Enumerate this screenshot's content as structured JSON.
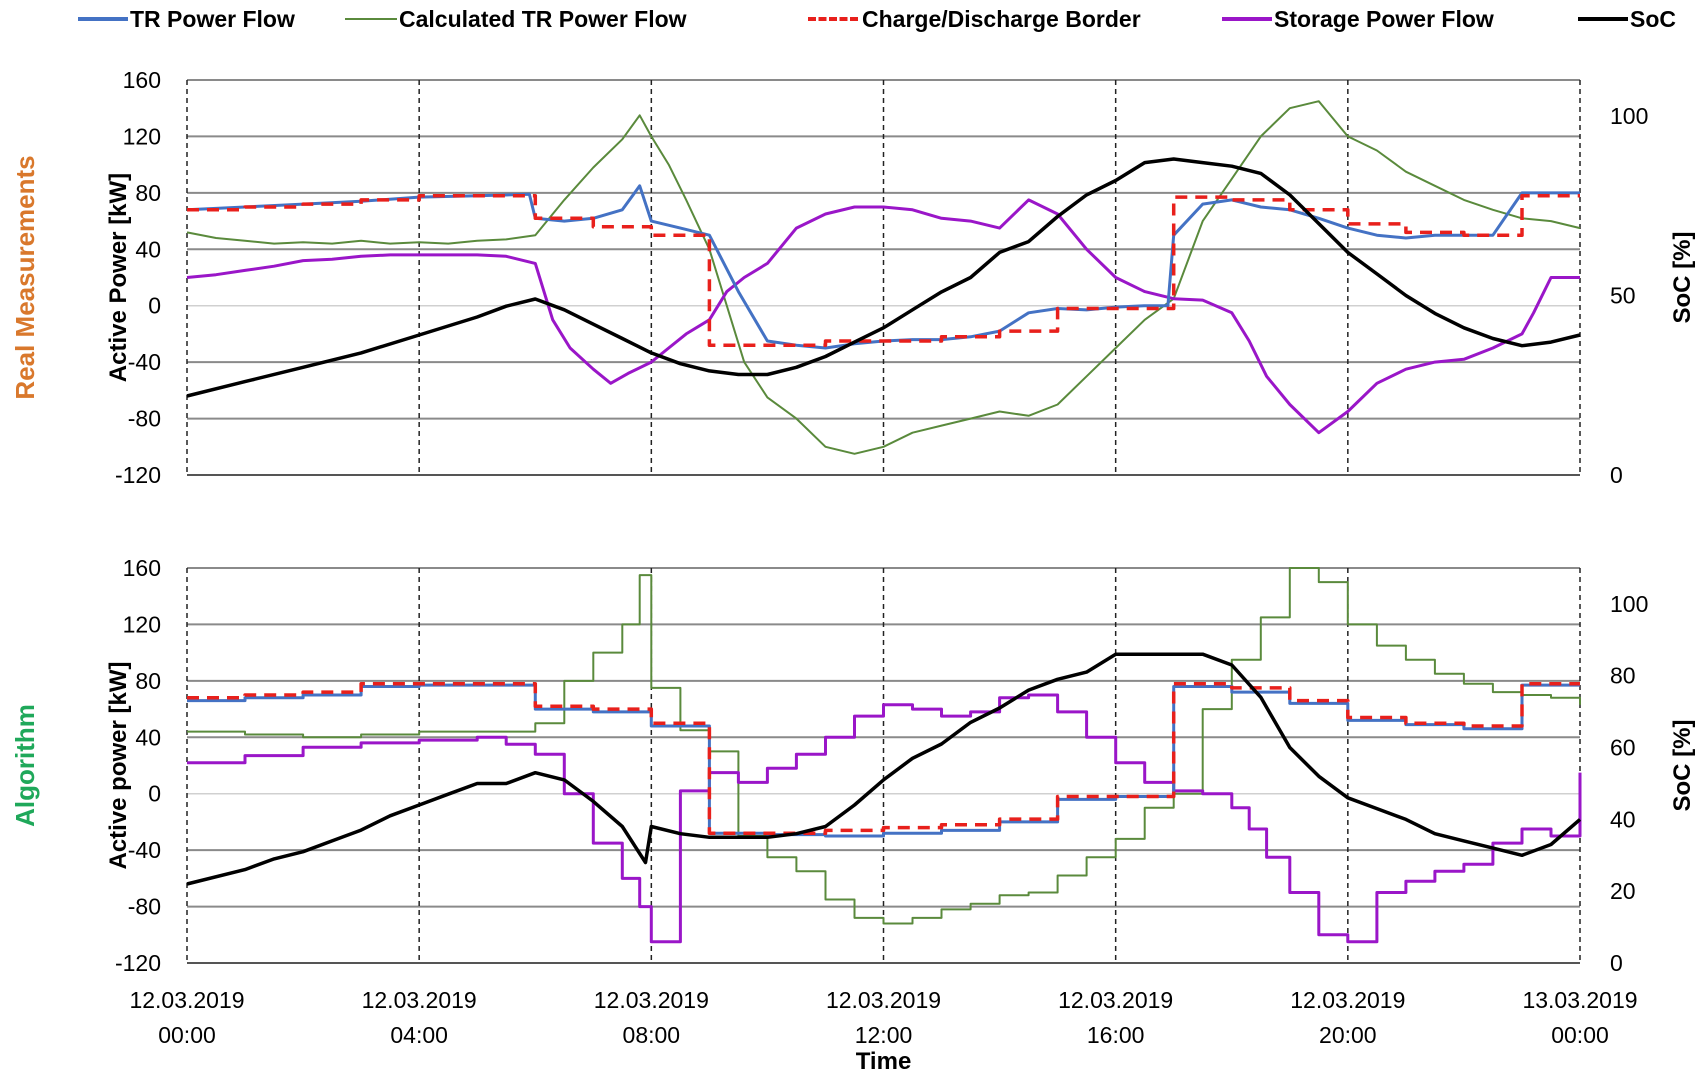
{
  "legend": {
    "tr_power_flow": "TR Power Flow",
    "calculated_tr_power_flow": "Calculated TR Power Flow",
    "charge_discharge_border": "Charge/Discharge Border",
    "storage_power_flow": "Storage Power Flow",
    "soc": "SoC"
  },
  "colors": {
    "tr": "#4472c4",
    "calc": "#5a8a3c",
    "border": "#e8201c",
    "storage": "#9a16c8",
    "soc": "#000000",
    "real_label": "#d9782c",
    "algo_label": "#1fa85a"
  },
  "x_ticks": [
    {
      "date": "12.03.2019",
      "time": "00:00"
    },
    {
      "date": "12.03.2019",
      "time": "04:00"
    },
    {
      "date": "12.03.2019",
      "time": "08:00"
    },
    {
      "date": "12.03.2019",
      "time": "12:00"
    },
    {
      "date": "12.03.2019",
      "time": "16:00"
    },
    {
      "date": "12.03.2019",
      "time": "20:00"
    },
    {
      "date": "13.03.2019",
      "time": "00:00"
    }
  ],
  "x_label": "Time",
  "chart_data": [
    {
      "type": "line",
      "panel_label": "Real Measurements",
      "ylabel": "Active Power [kW]",
      "y2label": "SoC [%]",
      "ylim": [
        -120,
        160
      ],
      "y_ticks": [
        "160",
        "120",
        "80",
        "40",
        "0",
        "-40",
        "-80",
        "-120"
      ],
      "y2lim": [
        0,
        110
      ],
      "y2_ticks": [
        "100",
        "50",
        "0"
      ],
      "x_unit": "hours since 12.03.2019 00:00",
      "xlim": [
        0,
        24
      ],
      "series": [
        {
          "name": "TR Power Flow",
          "axis": "left",
          "step": false,
          "x": [
            0,
            1,
            2,
            3,
            4,
            5,
            5.9,
            6,
            6.5,
            7,
            7.5,
            7.8,
            8,
            8.5,
            9,
            9.5,
            10,
            10.5,
            11,
            11.5,
            12,
            12.5,
            13,
            13.5,
            14,
            14.5,
            15,
            15.5,
            16,
            16.5,
            16.9,
            17,
            17.5,
            18,
            18.5,
            19,
            19.5,
            20,
            20.5,
            21,
            21.5,
            22,
            22.5,
            23,
            23.5,
            24
          ],
          "y": [
            68,
            70,
            72,
            74,
            77,
            78,
            79,
            62,
            60,
            62,
            68,
            85,
            60,
            55,
            50,
            10,
            -25,
            -28,
            -30,
            -27,
            -25,
            -24,
            -24,
            -22,
            -18,
            -5,
            -2,
            -3,
            -1,
            0,
            0,
            50,
            72,
            75,
            70,
            68,
            62,
            55,
            50,
            48,
            50,
            50,
            50,
            80,
            80,
            80
          ]
        },
        {
          "name": "Calculated TR Power Flow",
          "axis": "left",
          "step": false,
          "x": [
            0,
            0.5,
            1,
            1.5,
            2,
            2.5,
            3,
            3.5,
            4,
            4.5,
            5,
            5.5,
            6,
            6.5,
            7,
            7.5,
            7.8,
            8,
            8.3,
            8.6,
            9,
            9.3,
            9.6,
            10,
            10.5,
            11,
            11.5,
            12,
            12.5,
            13,
            13.5,
            14,
            14.5,
            15,
            15.5,
            16,
            16.5,
            17,
            17.5,
            18,
            18.5,
            19,
            19.5,
            20,
            20.5,
            21,
            21.5,
            22,
            22.5,
            23,
            23.5,
            24
          ],
          "y": [
            52,
            48,
            46,
            44,
            45,
            44,
            46,
            44,
            45,
            44,
            46,
            47,
            50,
            75,
            98,
            118,
            135,
            120,
            100,
            75,
            40,
            0,
            -40,
            -65,
            -80,
            -100,
            -105,
            -100,
            -90,
            -85,
            -80,
            -75,
            -78,
            -70,
            -50,
            -30,
            -10,
            5,
            60,
            90,
            120,
            140,
            145,
            120,
            110,
            95,
            85,
            75,
            68,
            62,
            60,
            55
          ]
        },
        {
          "name": "Charge/Discharge Border",
          "axis": "left",
          "step": true,
          "x": [
            0,
            1,
            2,
            3,
            4,
            5,
            6,
            7,
            8,
            9,
            10,
            11,
            12,
            13,
            14,
            15,
            16,
            17,
            18,
            19,
            20,
            21,
            22,
            23,
            24
          ],
          "y": [
            68,
            70,
            72,
            75,
            78,
            78,
            62,
            56,
            50,
            -28,
            -28,
            -25,
            -25,
            -22,
            -18,
            -2,
            -2,
            77,
            75,
            68,
            58,
            52,
            50,
            78,
            78
          ]
        },
        {
          "name": "Storage Power Flow",
          "axis": "left",
          "step": false,
          "x": [
            0,
            0.5,
            1,
            1.5,
            2,
            2.5,
            3,
            3.5,
            4,
            4.5,
            5,
            5.5,
            6,
            6.3,
            6.6,
            7,
            7.3,
            7.6,
            8,
            8.3,
            8.6,
            9,
            9.3,
            9.6,
            10,
            10.5,
            11,
            11.5,
            12,
            12.5,
            13,
            13.5,
            14,
            14.5,
            15,
            15.5,
            16,
            16.5,
            17,
            17.5,
            18,
            18.3,
            18.6,
            19,
            19.5,
            20,
            20.5,
            21,
            21.5,
            22,
            22.5,
            23,
            23.2,
            23.5,
            24
          ],
          "y": [
            20,
            22,
            25,
            28,
            32,
            33,
            35,
            36,
            36,
            36,
            36,
            35,
            30,
            -10,
            -30,
            -45,
            -55,
            -48,
            -40,
            -30,
            -20,
            -10,
            10,
            20,
            30,
            55,
            65,
            70,
            70,
            68,
            62,
            60,
            55,
            75,
            65,
            40,
            20,
            10,
            5,
            4,
            -5,
            -25,
            -50,
            -70,
            -90,
            -75,
            -55,
            -45,
            -40,
            -38,
            -30,
            -20,
            -5,
            20,
            20
          ]
        },
        {
          "name": "SoC",
          "axis": "right",
          "step": false,
          "x": [
            0,
            1,
            2,
            3,
            4,
            5,
            5.5,
            6,
            6.5,
            7,
            7.5,
            8,
            8.5,
            9,
            9.5,
            10,
            10.5,
            11,
            11.5,
            12,
            12.5,
            13,
            13.5,
            14,
            14.5,
            15,
            15.5,
            16,
            16.5,
            17,
            17.5,
            18,
            18.5,
            19,
            19.5,
            20,
            20.5,
            21,
            21.5,
            22,
            22.5,
            23,
            23.5,
            24
          ],
          "y": [
            22,
            26,
            30,
            34,
            39,
            44,
            47,
            49,
            46,
            42,
            38,
            34,
            31,
            29,
            28,
            28,
            30,
            33,
            37,
            41,
            46,
            51,
            55,
            62,
            65,
            72,
            78,
            82,
            87,
            88,
            87,
            86,
            84,
            78,
            70,
            62,
            56,
            50,
            45,
            41,
            38,
            36,
            37,
            39
          ]
        }
      ]
    },
    {
      "type": "line",
      "panel_label": "Algorithm",
      "ylabel": "Active power [kW]",
      "y2label": "SoC [%]",
      "ylim": [
        -120,
        160
      ],
      "y_ticks": [
        "160",
        "120",
        "80",
        "40",
        "0",
        "-40",
        "-80",
        "-120"
      ],
      "y2lim": [
        0,
        110
      ],
      "y2_ticks": [
        "100",
        "80",
        "60",
        "40",
        "20",
        "0"
      ],
      "x_unit": "hours since 12.03.2019 00:00",
      "xlim": [
        0,
        24
      ],
      "series": [
        {
          "name": "TR Power Flow",
          "axis": "left",
          "step": true,
          "x": [
            0,
            1,
            2,
            3,
            4,
            5,
            6,
            7,
            8,
            9,
            10,
            11,
            12,
            13,
            14,
            15,
            16,
            17,
            18,
            19,
            20,
            21,
            22,
            23,
            24
          ],
          "y": [
            66,
            68,
            70,
            76,
            77,
            77,
            60,
            58,
            48,
            -28,
            -29,
            -30,
            -28,
            -26,
            -20,
            -4,
            -2,
            76,
            72,
            64,
            52,
            49,
            46,
            77,
            77
          ]
        },
        {
          "name": "Calculated TR Power Flow",
          "axis": "left",
          "step": true,
          "x": [
            0,
            1,
            2,
            3,
            4,
            5,
            6,
            6.5,
            7,
            7.5,
            7.8,
            8,
            8.5,
            9,
            9.5,
            10,
            10.5,
            11,
            11.5,
            12,
            12.5,
            13,
            13.5,
            14,
            14.5,
            15,
            15.5,
            16,
            16.5,
            17,
            17.5,
            18,
            18.5,
            19,
            19.5,
            20,
            20.5,
            21,
            21.5,
            22,
            22.5,
            23,
            23.5,
            24
          ],
          "y": [
            44,
            42,
            40,
            42,
            44,
            44,
            50,
            80,
            100,
            120,
            155,
            75,
            45,
            30,
            -30,
            -45,
            -55,
            -75,
            -88,
            -92,
            -88,
            -82,
            -78,
            -72,
            -70,
            -58,
            -45,
            -32,
            -10,
            0,
            60,
            95,
            125,
            160,
            150,
            120,
            105,
            95,
            85,
            78,
            72,
            70,
            68,
            63
          ]
        },
        {
          "name": "Charge/Discharge Border",
          "axis": "left",
          "step": true,
          "x": [
            0,
            1,
            2,
            3,
            4,
            5,
            6,
            7,
            8,
            9,
            10,
            11,
            12,
            13,
            14,
            15,
            16,
            17,
            18,
            19,
            20,
            21,
            22,
            23,
            24
          ],
          "y": [
            68,
            70,
            72,
            78,
            78,
            78,
            62,
            60,
            50,
            -28,
            -28,
            -26,
            -24,
            -22,
            -18,
            -2,
            -2,
            78,
            75,
            66,
            54,
            50,
            48,
            78,
            78
          ]
        },
        {
          "name": "Storage Power Flow",
          "axis": "left",
          "step": true,
          "x": [
            0,
            1,
            2,
            3,
            4,
            5,
            5.5,
            6,
            6.5,
            7,
            7.5,
            7.8,
            8,
            8.5,
            9,
            9.5,
            10,
            10.5,
            11,
            11.5,
            12,
            12.5,
            13,
            13.5,
            14,
            14.5,
            15,
            15.5,
            16,
            16.5,
            17,
            17.5,
            18,
            18.3,
            18.6,
            19,
            19.5,
            20,
            20.5,
            21,
            21.5,
            22,
            22.5,
            23,
            23.5,
            24
          ],
          "y": [
            22,
            27,
            33,
            36,
            38,
            40,
            35,
            28,
            0,
            -35,
            -60,
            -80,
            -105,
            2,
            15,
            8,
            18,
            28,
            40,
            55,
            63,
            60,
            55,
            58,
            68,
            70,
            58,
            40,
            22,
            8,
            2,
            0,
            -10,
            -25,
            -45,
            -70,
            -100,
            -105,
            -70,
            -62,
            -55,
            -50,
            -35,
            -25,
            -30,
            15
          ]
        },
        {
          "name": "SoC",
          "axis": "right",
          "step": false,
          "x": [
            0,
            1,
            1.5,
            2,
            2.5,
            3,
            3.5,
            4,
            4.5,
            5,
            5.5,
            6,
            6.5,
            7,
            7.5,
            7.9,
            8,
            8.5,
            9,
            9.5,
            10,
            10.5,
            11,
            11.5,
            12,
            12.5,
            13,
            13.5,
            14,
            14.5,
            15,
            15.5,
            16,
            16.5,
            17,
            17.5,
            18,
            18.5,
            19,
            19.5,
            20,
            20.5,
            21,
            21.5,
            22,
            22.5,
            23,
            23.5,
            24
          ],
          "y": [
            22,
            26,
            29,
            31,
            34,
            37,
            41,
            44,
            47,
            50,
            50,
            53,
            51,
            45,
            38,
            28,
            38,
            36,
            35,
            35,
            35,
            36,
            38,
            44,
            51,
            57,
            61,
            67,
            71,
            76,
            79,
            81,
            86,
            86,
            86,
            86,
            83,
            74,
            60,
            52,
            46,
            43,
            40,
            36,
            34,
            32,
            30,
            33,
            40
          ]
        }
      ]
    }
  ]
}
